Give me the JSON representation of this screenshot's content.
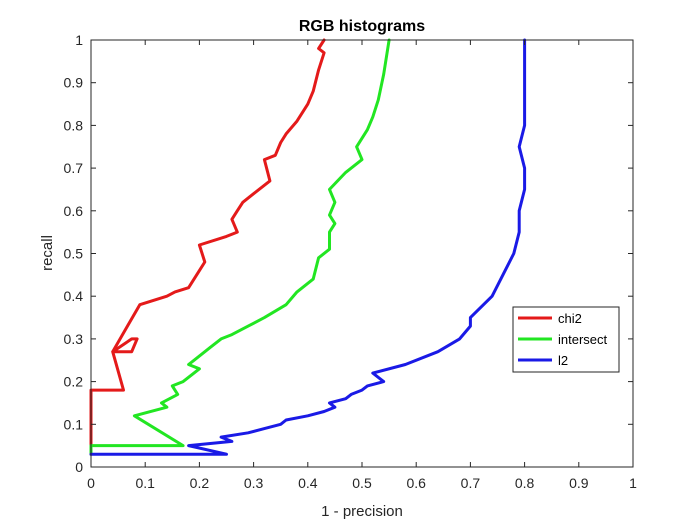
{
  "chart_data": {
    "type": "line",
    "title": "RGB histograms",
    "xlabel": "1 - precision",
    "ylabel": "recall",
    "xlim": [
      0,
      1
    ],
    "ylim": [
      0,
      1
    ],
    "xticks": [
      "0",
      "0.1",
      "0.2",
      "0.3",
      "0.4",
      "0.5",
      "0.6",
      "0.7",
      "0.8",
      "0.9",
      "1"
    ],
    "yticks": [
      "0",
      "0.1",
      "0.2",
      "0.3",
      "0.4",
      "0.5",
      "0.6",
      "0.7",
      "0.8",
      "0.9",
      "1"
    ],
    "grid": false,
    "legend_position": "right",
    "series": [
      {
        "name": "chi2",
        "color": "#e41a1a",
        "points": [
          [
            0,
            0.03
          ],
          [
            0,
            0.18
          ],
          [
            0.06,
            0.18
          ],
          [
            0.04,
            0.27
          ],
          [
            0.075,
            0.27
          ],
          [
            0.085,
            0.3
          ],
          [
            0.075,
            0.3
          ],
          [
            0.04,
            0.27
          ],
          [
            0.09,
            0.38
          ],
          [
            0.14,
            0.4
          ],
          [
            0.155,
            0.41
          ],
          [
            0.18,
            0.42
          ],
          [
            0.2,
            0.46
          ],
          [
            0.21,
            0.48
          ],
          [
            0.2,
            0.52
          ],
          [
            0.25,
            0.54
          ],
          [
            0.27,
            0.55
          ],
          [
            0.26,
            0.58
          ],
          [
            0.27,
            0.6
          ],
          [
            0.28,
            0.62
          ],
          [
            0.3,
            0.64
          ],
          [
            0.33,
            0.67
          ],
          [
            0.32,
            0.72
          ],
          [
            0.34,
            0.73
          ],
          [
            0.35,
            0.76
          ],
          [
            0.36,
            0.78
          ],
          [
            0.38,
            0.81
          ],
          [
            0.4,
            0.85
          ],
          [
            0.41,
            0.88
          ],
          [
            0.42,
            0.93
          ],
          [
            0.43,
            0.97
          ],
          [
            0.42,
            0.98
          ],
          [
            0.43,
            1.0
          ]
        ]
      },
      {
        "name": "intersect",
        "color": "#22e622",
        "points": [
          [
            0,
            0.03
          ],
          [
            0,
            0.05
          ],
          [
            0.17,
            0.05
          ],
          [
            0.08,
            0.12
          ],
          [
            0.14,
            0.14
          ],
          [
            0.13,
            0.15
          ],
          [
            0.16,
            0.17
          ],
          [
            0.15,
            0.19
          ],
          [
            0.17,
            0.2
          ],
          [
            0.2,
            0.23
          ],
          [
            0.18,
            0.24
          ],
          [
            0.19,
            0.25
          ],
          [
            0.22,
            0.28
          ],
          [
            0.24,
            0.3
          ],
          [
            0.26,
            0.31
          ],
          [
            0.29,
            0.33
          ],
          [
            0.32,
            0.35
          ],
          [
            0.36,
            0.38
          ],
          [
            0.38,
            0.41
          ],
          [
            0.41,
            0.44
          ],
          [
            0.42,
            0.49
          ],
          [
            0.44,
            0.51
          ],
          [
            0.44,
            0.55
          ],
          [
            0.45,
            0.57
          ],
          [
            0.44,
            0.59
          ],
          [
            0.45,
            0.62
          ],
          [
            0.44,
            0.65
          ],
          [
            0.47,
            0.69
          ],
          [
            0.5,
            0.72
          ],
          [
            0.49,
            0.75
          ],
          [
            0.51,
            0.79
          ],
          [
            0.52,
            0.82
          ],
          [
            0.53,
            0.86
          ],
          [
            0.54,
            0.92
          ],
          [
            0.55,
            1.0
          ]
        ]
      },
      {
        "name": "l2",
        "color": "#1a1ae6",
        "points": [
          [
            0,
            0.03
          ],
          [
            0.25,
            0.03
          ],
          [
            0.18,
            0.05
          ],
          [
            0.26,
            0.06
          ],
          [
            0.24,
            0.07
          ],
          [
            0.29,
            0.08
          ],
          [
            0.32,
            0.09
          ],
          [
            0.35,
            0.1
          ],
          [
            0.36,
            0.11
          ],
          [
            0.4,
            0.12
          ],
          [
            0.43,
            0.13
          ],
          [
            0.45,
            0.14
          ],
          [
            0.44,
            0.15
          ],
          [
            0.47,
            0.16
          ],
          [
            0.48,
            0.17
          ],
          [
            0.5,
            0.18
          ],
          [
            0.51,
            0.19
          ],
          [
            0.54,
            0.2
          ],
          [
            0.52,
            0.22
          ],
          [
            0.58,
            0.24
          ],
          [
            0.64,
            0.27
          ],
          [
            0.68,
            0.3
          ],
          [
            0.7,
            0.33
          ],
          [
            0.7,
            0.35
          ],
          [
            0.74,
            0.4
          ],
          [
            0.76,
            0.45
          ],
          [
            0.78,
            0.5
          ],
          [
            0.79,
            0.55
          ],
          [
            0.79,
            0.6
          ],
          [
            0.8,
            0.65
          ],
          [
            0.8,
            0.7
          ],
          [
            0.79,
            0.75
          ],
          [
            0.8,
            0.8
          ],
          [
            0.8,
            0.85
          ],
          [
            0.8,
            0.9
          ],
          [
            0.8,
            1.0
          ]
        ]
      }
    ]
  }
}
